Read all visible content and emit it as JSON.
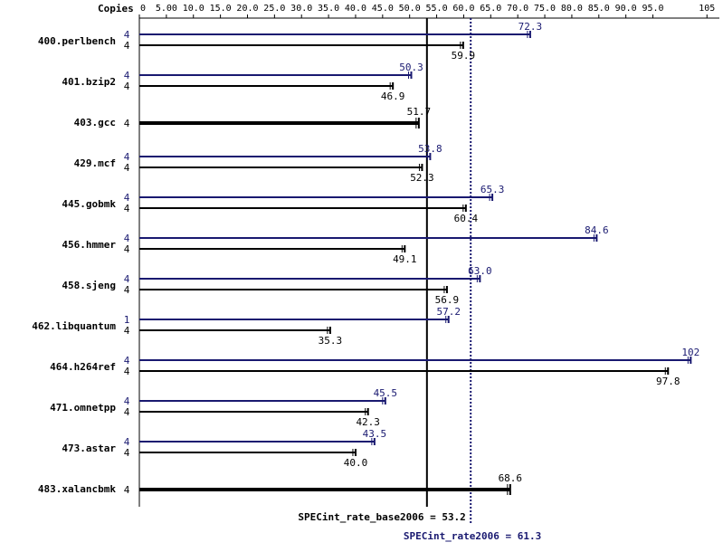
{
  "chart_data": {
    "type": "bar",
    "axis_label": "Copies",
    "xlim": [
      0,
      105
    ],
    "tick_labels": [
      "0",
      "5.00",
      "10.0",
      "15.0",
      "20.0",
      "25.0",
      "30.0",
      "35.0",
      "40.0",
      "45.0",
      "50.0",
      "55.0",
      "60.0",
      "65.0",
      "70.0",
      "75.0",
      "80.0",
      "85.0",
      "90.0",
      "95.0",
      "105"
    ],
    "tick_values": [
      0,
      5,
      10,
      15,
      20,
      25,
      30,
      35,
      40,
      45,
      50,
      55,
      60,
      65,
      70,
      75,
      80,
      85,
      90,
      95,
      105
    ],
    "colors": {
      "base": "#000000",
      "peak": "#191970"
    },
    "reference_lines": {
      "base": {
        "label": "SPECint_rate_base2006 = 53.2",
        "value": 53.2
      },
      "peak": {
        "label": "SPECint_rate2006 = 61.3",
        "value": 61.3
      }
    },
    "benchmarks": [
      {
        "name": "400.perlbench",
        "peak": {
          "copies": "4",
          "value": 72.3,
          "label": "72.3"
        },
        "base": {
          "copies": "4",
          "value": 59.9,
          "label": "59.9"
        }
      },
      {
        "name": "401.bzip2",
        "peak": {
          "copies": "4",
          "value": 50.3,
          "label": "50.3"
        },
        "base": {
          "copies": "4",
          "value": 46.9,
          "label": "46.9"
        }
      },
      {
        "name": "403.gcc",
        "combined": {
          "copies": "4",
          "value": 51.7,
          "label": "51.7"
        }
      },
      {
        "name": "429.mcf",
        "peak": {
          "copies": "4",
          "value": 53.8,
          "label": "53.8"
        },
        "base": {
          "copies": "4",
          "value": 52.3,
          "label": "52.3"
        }
      },
      {
        "name": "445.gobmk",
        "peak": {
          "copies": "4",
          "value": 65.3,
          "label": "65.3"
        },
        "base": {
          "copies": "4",
          "value": 60.4,
          "label": "60.4"
        }
      },
      {
        "name": "456.hmmer",
        "peak": {
          "copies": "4",
          "value": 84.6,
          "label": "84.6"
        },
        "base": {
          "copies": "4",
          "value": 49.1,
          "label": "49.1"
        }
      },
      {
        "name": "458.sjeng",
        "peak": {
          "copies": "4",
          "value": 63.0,
          "label": "63.0"
        },
        "base": {
          "copies": "4",
          "value": 56.9,
          "label": "56.9"
        }
      },
      {
        "name": "462.libquantum",
        "peak": {
          "copies": "1",
          "value": 57.2,
          "label": "57.2"
        },
        "base": {
          "copies": "4",
          "value": 35.3,
          "label": "35.3"
        }
      },
      {
        "name": "464.h264ref",
        "peak": {
          "copies": "4",
          "value": 102,
          "label": "102"
        },
        "base": {
          "copies": "4",
          "value": 97.8,
          "label": "97.8"
        }
      },
      {
        "name": "471.omnetpp",
        "peak": {
          "copies": "4",
          "value": 45.5,
          "label": "45.5"
        },
        "base": {
          "copies": "4",
          "value": 42.3,
          "label": "42.3"
        }
      },
      {
        "name": "473.astar",
        "peak": {
          "copies": "4",
          "value": 43.5,
          "label": "43.5"
        },
        "base": {
          "copies": "4",
          "value": 40.0,
          "label": "40.0"
        }
      },
      {
        "name": "483.xalancbmk",
        "combined": {
          "copies": "4",
          "value": 68.6,
          "label": "68.6"
        }
      }
    ]
  }
}
